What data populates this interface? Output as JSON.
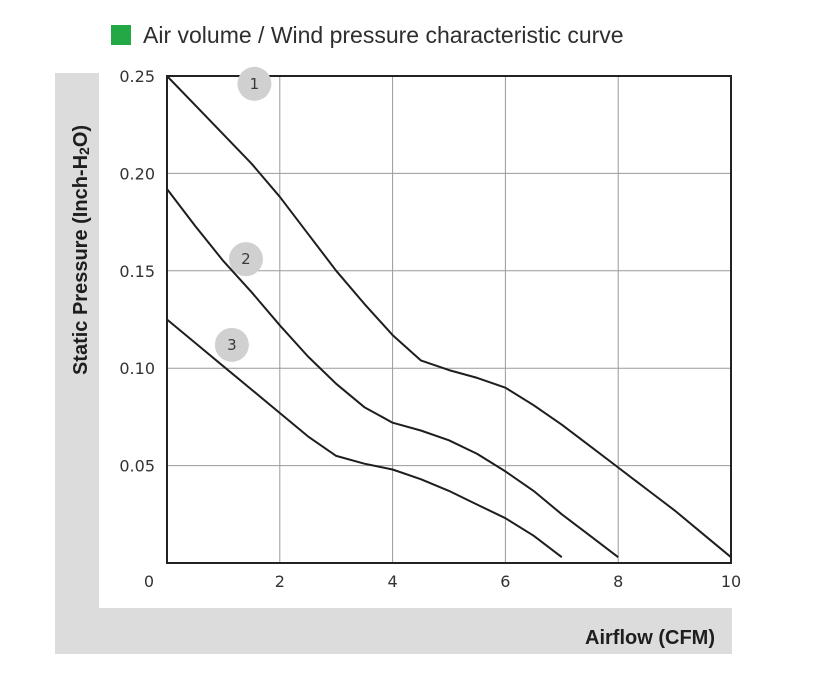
{
  "legend": {
    "label": "Air volume / Wind pressure characteristic curve",
    "color": "#22a845"
  },
  "chart_data": {
    "type": "line",
    "title": "",
    "xlabel": "Airflow (CFM)",
    "ylabel_parts": [
      "Static Pressure (Inch-H",
      "2",
      "O)"
    ],
    "xlim": [
      0,
      10
    ],
    "ylim": [
      0,
      0.25
    ],
    "x_ticks": [
      0,
      2,
      4,
      6,
      8,
      10
    ],
    "x_tick_labels": [
      "0",
      "2",
      "4",
      "6",
      "8",
      "10"
    ],
    "y_ticks": [
      0.05,
      0.1,
      0.15,
      0.2,
      0.25
    ],
    "y_tick_labels": [
      "0.05",
      "0.10",
      "0.15",
      "0.20",
      "0.25"
    ],
    "grid": true,
    "line_color": "#1e1e1e",
    "panel_color": "#dcdcdc",
    "marker_color": "#d0d0d0",
    "series": [
      {
        "name": "1",
        "label_at": [
          1.55,
          0.246
        ],
        "x": [
          0,
          0.5,
          1,
          1.5,
          2,
          2.5,
          3,
          3.5,
          4,
          4.5,
          5,
          5.5,
          6,
          6.5,
          7,
          7.5,
          8,
          8.5,
          9,
          9.5,
          10
        ],
        "y": [
          0.25,
          0.235,
          0.22,
          0.205,
          0.188,
          0.169,
          0.15,
          0.133,
          0.117,
          0.104,
          0.099,
          0.095,
          0.09,
          0.081,
          0.071,
          0.06,
          0.049,
          0.038,
          0.027,
          0.015,
          0.003
        ]
      },
      {
        "name": "2",
        "label_at": [
          1.4,
          0.156
        ],
        "x": [
          0,
          0.5,
          1,
          1.5,
          2,
          2.5,
          3,
          3.5,
          4,
          4.5,
          5,
          5.5,
          6,
          6.5,
          7,
          7.5,
          8
        ],
        "y": [
          0.192,
          0.173,
          0.155,
          0.139,
          0.122,
          0.106,
          0.092,
          0.08,
          0.072,
          0.068,
          0.063,
          0.056,
          0.047,
          0.037,
          0.025,
          0.014,
          0.003
        ]
      },
      {
        "name": "3",
        "label_at": [
          1.15,
          0.112
        ],
        "x": [
          0,
          0.5,
          1,
          1.5,
          2,
          2.5,
          3,
          3.5,
          4,
          4.5,
          5,
          5.5,
          6,
          6.5,
          7
        ],
        "y": [
          0.125,
          0.113,
          0.101,
          0.089,
          0.077,
          0.065,
          0.055,
          0.051,
          0.048,
          0.043,
          0.037,
          0.03,
          0.023,
          0.014,
          0.003
        ]
      }
    ]
  }
}
